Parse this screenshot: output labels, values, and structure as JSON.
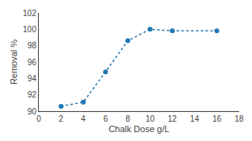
{
  "chart_data": {
    "type": "line",
    "x": [
      2,
      4,
      6,
      8,
      10,
      12,
      16
    ],
    "values": [
      90.6,
      91.1,
      94.8,
      98.6,
      100.0,
      99.8,
      99.8
    ],
    "xlabel": "Chalk Dose g/L",
    "ylabel": "Removal %",
    "xlim": [
      0,
      18
    ],
    "ylim": [
      90,
      102
    ],
    "xticks": [
      0,
      2,
      4,
      6,
      8,
      10,
      12,
      14,
      16,
      18
    ],
    "yticks": [
      90,
      92,
      94,
      96,
      98,
      100,
      102
    ],
    "marker": "circle",
    "line_style": "dotted",
    "grid": false
  }
}
